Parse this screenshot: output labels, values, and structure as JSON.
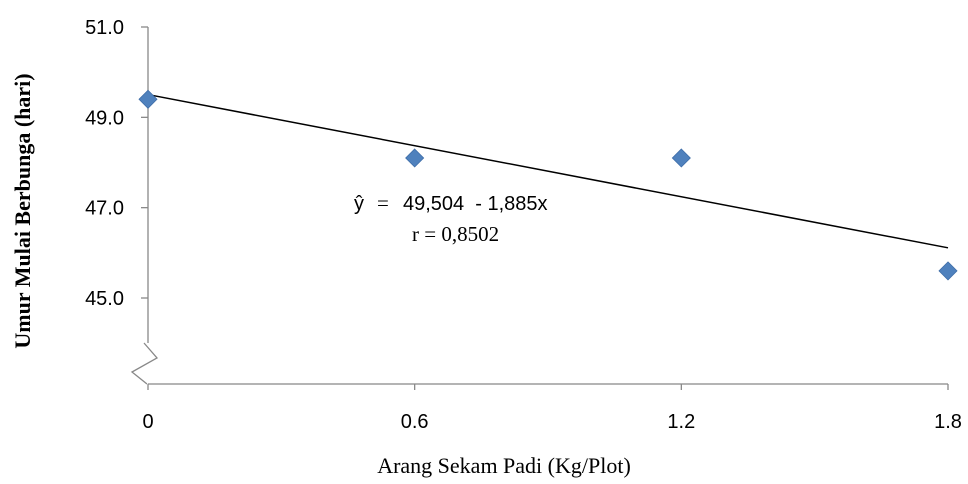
{
  "chart_data": {
    "type": "scatter",
    "xlabel": "Arang Sekam Padi (Kg/Plot)",
    "ylabel": "Umur Mulai Berbunga (hari)",
    "x_tick_labels": [
      "0",
      "0.6",
      "1.2",
      "1.8"
    ],
    "y_tick_labels": [
      "45.0",
      "47.0",
      "49.0",
      "51.0"
    ],
    "x_ticks": [
      0,
      0.6,
      1.2,
      1.8
    ],
    "y_ticks": [
      45,
      47,
      49,
      51
    ],
    "xlim": [
      0,
      1.8
    ],
    "ylim": [
      45,
      51
    ],
    "axis_break": "y",
    "points": [
      {
        "x": 0,
        "y": 49.4
      },
      {
        "x": 0.6,
        "y": 48.1
      },
      {
        "x": 1.2,
        "y": 48.1
      },
      {
        "x": 1.8,
        "y": 45.6
      }
    ],
    "trendline": {
      "intercept": 49.504,
      "slope": -1.885,
      "x_range": [
        0,
        1.8
      ]
    },
    "equation": {
      "y_hat": "ŷ",
      "eq_sign": "=",
      "expr": "49,504  - 1,885x",
      "r_text": "r = 0,8502"
    },
    "marker_color": "#4F81BD",
    "line_color": "#000000",
    "grid": false
  }
}
